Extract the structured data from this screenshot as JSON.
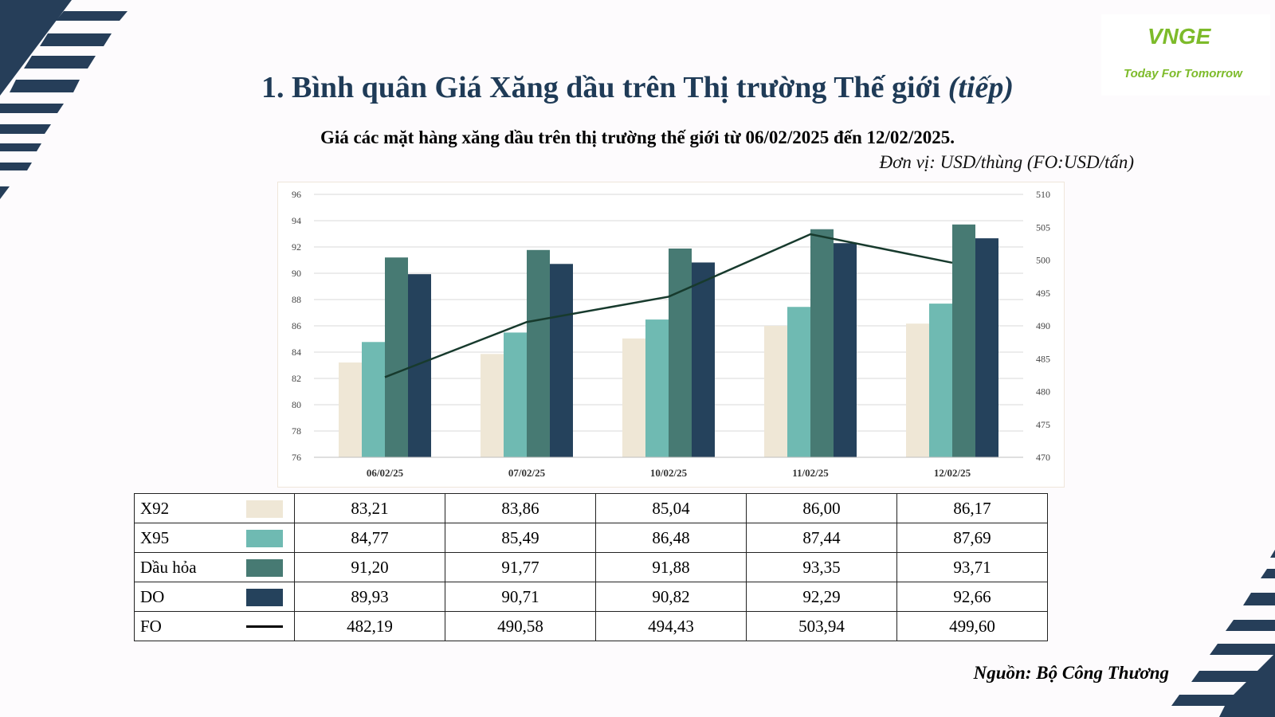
{
  "header": {
    "title": "1. Bình quân Giá Xăng dầu trên Thị trường Thế giới",
    "title_suffix": "(tiếp)",
    "subtitle": "Giá các mặt hàng xăng dầu trên thị trường thế giới từ 06/02/2025 đến 12/02/2025.",
    "unit": "Đơn vị: USD/thùng (FO:USD/tấn)"
  },
  "logo": {
    "brand": "VNGE",
    "tagline": "Today For Tomorrow",
    "color": "#7dbb2a"
  },
  "footer": {
    "source": "Nguồn: Bộ Công Thương"
  },
  "chart_data": {
    "type": "bar",
    "categories": [
      "06/02/25",
      "07/02/25",
      "10/02/25",
      "11/02/25",
      "12/02/25"
    ],
    "ylim": [
      76,
      96
    ],
    "yticks": [
      76,
      78,
      80,
      82,
      84,
      86,
      88,
      90,
      92,
      94,
      96
    ],
    "y2lim": [
      470,
      510
    ],
    "y2ticks": [
      470,
      475,
      480,
      485,
      490,
      495,
      500,
      505,
      510
    ],
    "grid": true,
    "series": [
      {
        "name": "X92",
        "type": "bar",
        "axis": "left",
        "color": "#efe7d6",
        "values": [
          83.21,
          83.86,
          85.04,
          86.0,
          86.17
        ],
        "labels": [
          "83,21",
          "83,86",
          "85,04",
          "86,00",
          "86,17"
        ]
      },
      {
        "name": "X95",
        "type": "bar",
        "axis": "left",
        "color": "#6fbab2",
        "values": [
          84.77,
          85.49,
          86.48,
          87.44,
          87.69
        ],
        "labels": [
          "84,77",
          "85,49",
          "86,48",
          "87,44",
          "87,69"
        ]
      },
      {
        "name": "Dầu hỏa",
        "type": "bar",
        "axis": "left",
        "color": "#477a73",
        "values": [
          91.2,
          91.77,
          91.88,
          93.35,
          93.71
        ],
        "labels": [
          "91,20",
          "91,77",
          "91,88",
          "93,35",
          "93,71"
        ]
      },
      {
        "name": "DO",
        "type": "bar",
        "axis": "left",
        "color": "#25425c",
        "values": [
          89.93,
          90.71,
          90.82,
          92.29,
          92.66
        ],
        "labels": [
          "89,93",
          "90,71",
          "90,82",
          "92,29",
          "92,66"
        ]
      },
      {
        "name": "FO",
        "type": "line",
        "axis": "right",
        "color": "#173a2d",
        "values": [
          482.19,
          490.58,
          494.43,
          503.94,
          499.6
        ],
        "labels": [
          "482,19",
          "490,58",
          "494,43",
          "503,94",
          "499,60"
        ]
      }
    ]
  }
}
